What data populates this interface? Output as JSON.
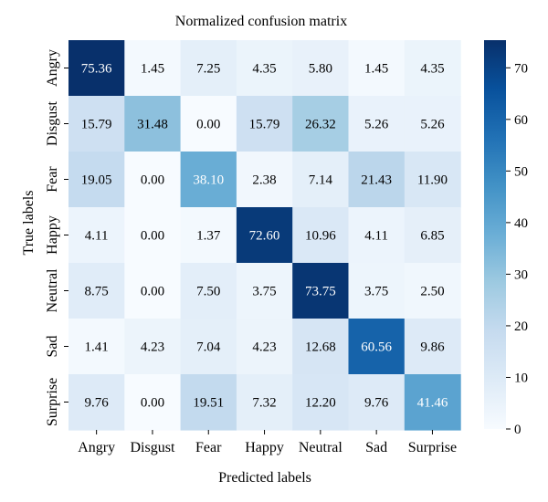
{
  "chart_data": {
    "type": "heatmap",
    "title": "Normalized confusion matrix",
    "xlabel": "Predicted labels",
    "ylabel": "True labels",
    "x_categories": [
      "Angry",
      "Disgust",
      "Fear",
      "Happy",
      "Neutral",
      "Sad",
      "Surprise"
    ],
    "y_categories": [
      "Angry",
      "Disgust",
      "Fear",
      "Happy",
      "Neutral",
      "Sad",
      "Surprise"
    ],
    "values": [
      [
        75.36,
        1.45,
        7.25,
        4.35,
        5.8,
        1.45,
        4.35
      ],
      [
        15.79,
        31.48,
        0.0,
        15.79,
        26.32,
        5.26,
        5.26
      ],
      [
        19.05,
        0.0,
        38.1,
        2.38,
        7.14,
        21.43,
        11.9
      ],
      [
        4.11,
        0.0,
        1.37,
        72.6,
        10.96,
        4.11,
        6.85
      ],
      [
        8.75,
        0.0,
        7.5,
        3.75,
        73.75,
        3.75,
        2.5
      ],
      [
        1.41,
        4.23,
        7.04,
        4.23,
        12.68,
        60.56,
        9.86
      ],
      [
        9.76,
        0.0,
        19.51,
        7.32,
        12.2,
        9.76,
        41.46
      ]
    ],
    "value_labels": [
      [
        "75.36",
        "1.45",
        "7.25",
        "4.35",
        "5.80",
        "1.45",
        "4.35"
      ],
      [
        "15.79",
        "31.48",
        "0.00",
        "15.79",
        "26.32",
        "5.26",
        "5.26"
      ],
      [
        "19.05",
        "0.00",
        "38.10",
        "2.38",
        "7.14",
        "21.43",
        "11.90"
      ],
      [
        "4.11",
        "0.00",
        "1.37",
        "72.60",
        "10.96",
        "4.11",
        "6.85"
      ],
      [
        "8.75",
        "0.00",
        "7.50",
        "3.75",
        "73.75",
        "3.75",
        "2.50"
      ],
      [
        "1.41",
        "4.23",
        "7.04",
        "4.23",
        "12.68",
        "60.56",
        "9.86"
      ],
      [
        "9.76",
        "0.00",
        "19.51",
        "7.32",
        "12.20",
        "9.76",
        "41.46"
      ]
    ],
    "colormap": "Blues",
    "colorbar": {
      "range": [
        0,
        75.36
      ],
      "ticks": [
        0,
        10,
        20,
        30,
        40,
        50,
        60,
        70
      ],
      "tick_labels": [
        "0",
        "10",
        "20",
        "30",
        "40",
        "50",
        "60",
        "70"
      ]
    },
    "grid": false,
    "legend": "colorbar-right"
  }
}
